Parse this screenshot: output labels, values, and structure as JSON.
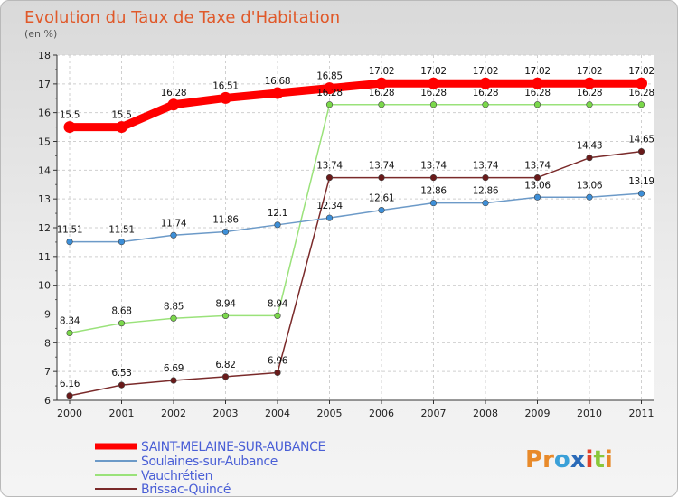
{
  "chart_data": {
    "type": "line",
    "title": "Evolution du Taux de Taxe d'Habitation",
    "subtitle": "(en %)",
    "xlabel": "",
    "ylabel": "",
    "x": [
      "2000",
      "2001",
      "2002",
      "2003",
      "2004",
      "2005",
      "2006",
      "2007",
      "2008",
      "2009",
      "2010",
      "2011"
    ],
    "ylim": [
      6,
      18
    ],
    "yticks": [
      6,
      7,
      8,
      9,
      10,
      11,
      12,
      13,
      14,
      15,
      16,
      17,
      18
    ],
    "grid": true,
    "legend_position": "bottom-left",
    "series": [
      {
        "name": "SAINT-MELAINE-SUR-AUBANCE",
        "color": "#ff0000",
        "values": [
          15.5,
          15.5,
          16.28,
          16.51,
          16.68,
          16.85,
          17.02,
          17.02,
          17.02,
          17.02,
          17.02,
          17.02
        ],
        "labels": [
          "15.5",
          "15.5",
          "16.28",
          "16.51",
          "16.68",
          "16.85",
          "17.02",
          "17.02",
          "17.02",
          "17.02",
          "17.02",
          "17.02"
        ]
      },
      {
        "name": "Soulaines-sur-Aubance",
        "color": "#6c9ac8",
        "values": [
          11.51,
          11.51,
          11.74,
          11.86,
          12.1,
          12.34,
          12.61,
          12.86,
          12.86,
          13.06,
          13.06,
          13.19
        ],
        "labels": [
          "11.51",
          "11.51",
          "11.74",
          "11.86",
          "12.1",
          "12.34",
          "12.61",
          "12.86",
          "12.86",
          "13.06",
          "13.06",
          "13.19"
        ]
      },
      {
        "name": "Vauchrétien",
        "color": "#9ae27a",
        "values": [
          8.34,
          8.68,
          8.85,
          8.94,
          8.94,
          16.28,
          16.28,
          16.28,
          16.28,
          16.28,
          16.28,
          16.28
        ],
        "labels": [
          "8.34",
          "8.68",
          "8.85",
          "8.94",
          "8.94",
          "16.28",
          "16.28",
          "16.28",
          "16.28",
          "16.28",
          "16.28",
          "16.28"
        ]
      },
      {
        "name": "Brissac-Quincé",
        "color": "#7a2a2a",
        "values": [
          6.16,
          6.53,
          6.69,
          6.82,
          6.96,
          13.74,
          13.74,
          13.74,
          13.74,
          13.74,
          14.43,
          14.65
        ],
        "labels": [
          "6.16",
          "6.53",
          "6.69",
          "6.82",
          "6.96",
          "13.74",
          "13.74",
          "13.74",
          "13.74",
          "13.74",
          "14.43",
          "14.65"
        ]
      }
    ]
  },
  "legend_colors": [
    "#ff0000",
    "#6c9ac8",
    "#9ae27a",
    "#7a2a2a"
  ],
  "legend_text_color": "#4a5fd6",
  "marker_colors": [
    "#ff0000",
    "#3d8fd8",
    "#7ad84a",
    "#6a1a1a"
  ],
  "logo": {
    "text": "Proxiti",
    "letters": [
      "P",
      "r",
      "o",
      "x",
      "i",
      "t",
      "i"
    ],
    "colors": [
      "#e88a2a",
      "#e88a2a",
      "#3aa0d8",
      "#2a6ab8",
      "#e0402a",
      "#8ac83a",
      "#e88a2a"
    ]
  }
}
